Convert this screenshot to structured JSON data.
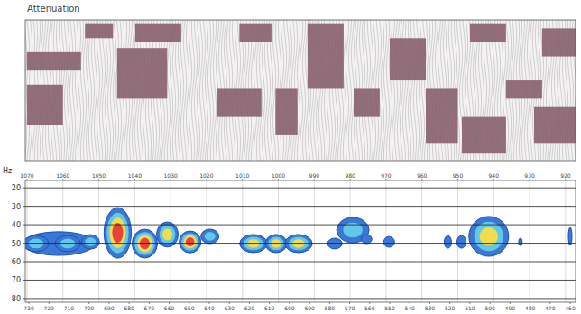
{
  "chart_data": [
    {
      "type": "band",
      "title": "Attenuation",
      "color": "#8b5e6e",
      "xlim": [
        731.8,
        457.3
      ],
      "ylim": [
        0,
        100
      ],
      "tick_labels": false,
      "regions": [
        {
          "x0": 731,
          "x1": 704,
          "y0": 64,
          "y1": 77
        },
        {
          "x0": 731,
          "x1": 713,
          "y0": 25,
          "y1": 54
        },
        {
          "x0": 702,
          "x1": 688,
          "y0": 87,
          "y1": 97
        },
        {
          "x0": 686,
          "x1": 661,
          "y0": 44,
          "y1": 80
        },
        {
          "x0": 677,
          "x1": 654,
          "y0": 84,
          "y1": 97
        },
        {
          "x0": 636,
          "x1": 614,
          "y0": 31,
          "y1": 51
        },
        {
          "x0": 625,
          "x1": 609,
          "y0": 84,
          "y1": 97
        },
        {
          "x0": 607,
          "x1": 596,
          "y0": 18,
          "y1": 51
        },
        {
          "x0": 591,
          "x1": 573,
          "y0": 51,
          "y1": 97
        },
        {
          "x0": 568,
          "x1": 555,
          "y0": 31,
          "y1": 51
        },
        {
          "x0": 550,
          "x1": 532,
          "y0": 57,
          "y1": 87
        },
        {
          "x0": 532,
          "x1": 516,
          "y0": 12,
          "y1": 51
        },
        {
          "x0": 514,
          "x1": 492,
          "y0": 5,
          "y1": 31
        },
        {
          "x0": 510,
          "x1": 492,
          "y0": 84,
          "y1": 97
        },
        {
          "x0": 492,
          "x1": 474,
          "y0": 44,
          "y1": 57
        },
        {
          "x0": 474,
          "x1": 457,
          "y0": 74,
          "y1": 94
        },
        {
          "x0": 478,
          "x1": 457,
          "y0": 12,
          "y1": 38
        }
      ]
    },
    {
      "type": "contour",
      "y_label": "Hz",
      "xlim": [
        731.8,
        457.3
      ],
      "xticks": [
        730,
        720,
        710,
        700,
        690,
        680,
        670,
        660,
        650,
        640,
        630,
        620,
        610,
        600,
        590,
        580,
        570,
        560,
        550,
        540,
        530,
        520,
        510,
        500,
        490,
        480,
        470,
        460
      ],
      "x2lim": [
        1070.5,
        917.2
      ],
      "x2ticks": [
        1070,
        1060,
        1050,
        1040,
        1030,
        1020,
        1010,
        1000,
        990,
        980,
        970,
        960,
        950,
        940,
        930,
        920
      ],
      "ylim": [
        16,
        82
      ],
      "yticks": [
        20,
        30,
        40,
        50,
        60,
        70,
        80
      ],
      "grid": true,
      "blobs": [
        {
          "x": 715.1,
          "y": 50.2,
          "rx": 18,
          "ry": 6.4,
          "levels": 1
        },
        {
          "x": 726.4,
          "y": 50.2,
          "rx": 6.3,
          "ry": 4.4,
          "levels": 2
        },
        {
          "x": 710.6,
          "y": 50.2,
          "rx": 6.3,
          "ry": 4.4,
          "levels": 2
        },
        {
          "x": 699.3,
          "y": 49.3,
          "rx": 4.5,
          "ry": 3.9,
          "levels": 2
        },
        {
          "x": 685.7,
          "y": 44.4,
          "rx": 6.8,
          "ry": 13.7,
          "levels": 4
        },
        {
          "x": 672.2,
          "y": 50.2,
          "rx": 6.3,
          "ry": 7.8,
          "levels": 4
        },
        {
          "x": 660.9,
          "y": 45.3,
          "rx": 5.4,
          "ry": 6.8,
          "levels": 3
        },
        {
          "x": 649.6,
          "y": 49.3,
          "rx": 5.4,
          "ry": 5.9,
          "levels": 4
        },
        {
          "x": 639.7,
          "y": 46.3,
          "rx": 4.5,
          "ry": 3.9,
          "levels": 2
        },
        {
          "x": 618,
          "y": 50.2,
          "rx": 6.8,
          "ry": 4.9,
          "levels": 3
        },
        {
          "x": 606.7,
          "y": 50.2,
          "rx": 5.4,
          "ry": 4.9,
          "levels": 3
        },
        {
          "x": 595.5,
          "y": 50.2,
          "rx": 6.8,
          "ry": 4.9,
          "levels": 3
        },
        {
          "x": 577.4,
          "y": 50.2,
          "rx": 3.6,
          "ry": 2.9,
          "levels": 1
        },
        {
          "x": 568.4,
          "y": 42.9,
          "rx": 8.1,
          "ry": 6.8,
          "levels": 2
        },
        {
          "x": 561.6,
          "y": 47.8,
          "rx": 2.7,
          "ry": 2.4,
          "levels": 1
        },
        {
          "x": 550.3,
          "y": 49.3,
          "rx": 2.7,
          "ry": 2.9,
          "levels": 1
        },
        {
          "x": 521,
          "y": 49.3,
          "rx": 1.8,
          "ry": 3.4,
          "levels": 1
        },
        {
          "x": 514.2,
          "y": 49.3,
          "rx": 2.3,
          "ry": 3.4,
          "levels": 1
        },
        {
          "x": 500.6,
          "y": 46.3,
          "rx": 9.9,
          "ry": 10.8,
          "levels": 3
        },
        {
          "x": 484.8,
          "y": 49.3,
          "rx": 0.9,
          "ry": 2,
          "levels": 1
        },
        {
          "x": 460,
          "y": 46.3,
          "rx": 0.9,
          "ry": 4.9,
          "levels": 1
        }
      ]
    }
  ]
}
